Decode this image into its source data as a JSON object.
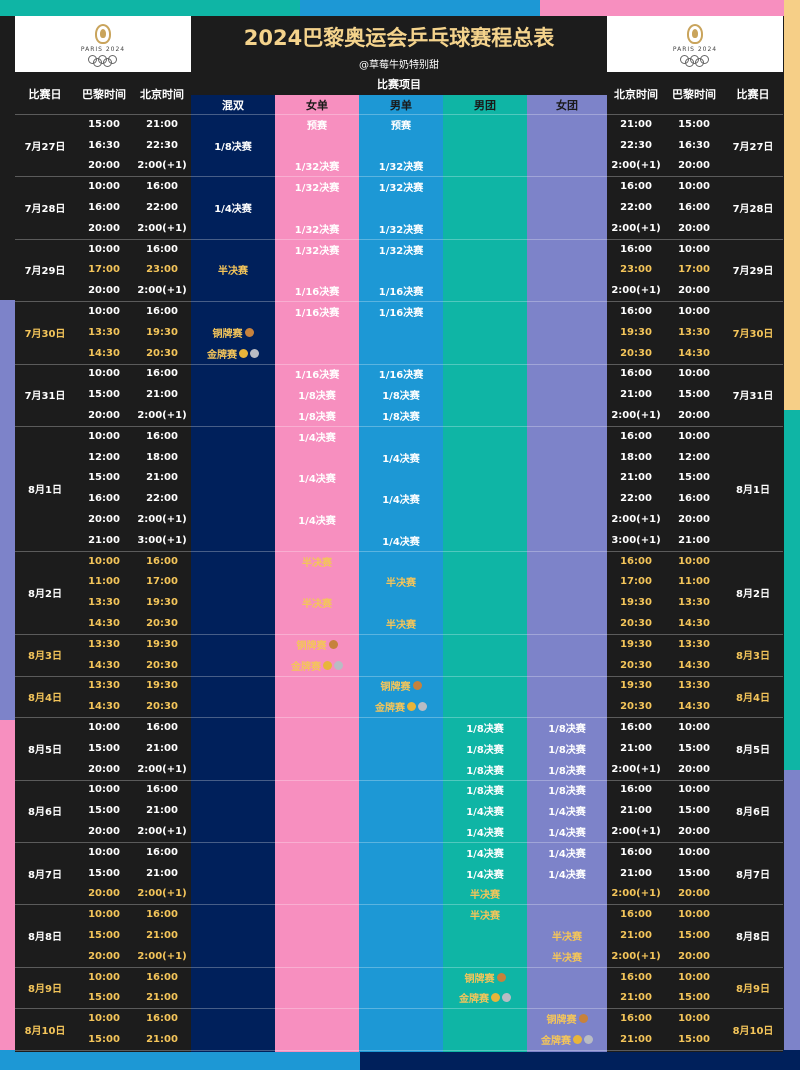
{
  "header": {
    "title": "2024巴黎奥运会乒乓球赛程总表",
    "subtitle": "@草莓牛奶特别甜",
    "logo_text": "PARIS 2024"
  },
  "columns": {
    "date": "比赛日",
    "paris": "巴黎时间",
    "beijing": "北京时间",
    "events_group": "比赛项目",
    "mixed": "混双",
    "women_single": "女单",
    "men_single": "男单",
    "men_team": "男团",
    "women_team": "女团",
    "beijing_r": "北京时间",
    "paris_r": "巴黎时间",
    "date_r": "比赛日"
  },
  "colors": {
    "mixed": "#00205b",
    "women_single": "#f78fbf",
    "men_single": "#1d98d5",
    "men_team": "#0fb5a5",
    "women_team": "#7d83c9",
    "gold_text": "#f4c55a"
  },
  "days": [
    {
      "date": "7月27日",
      "gold": false,
      "rows": [
        {
          "paris": "15:00",
          "beijing": "21:00",
          "gold": false
        },
        {
          "paris": "16:30",
          "beijing": "22:30",
          "gold": false
        },
        {
          "paris": "20:00",
          "beijing": "2:00(+1)",
          "gold": false
        }
      ]
    },
    {
      "date": "7月28日",
      "gold": false,
      "rows": [
        {
          "paris": "10:00",
          "beijing": "16:00",
          "gold": false
        },
        {
          "paris": "16:00",
          "beijing": "22:00",
          "gold": false
        },
        {
          "paris": "20:00",
          "beijing": "2:00(+1)",
          "gold": false
        }
      ]
    },
    {
      "date": "7月29日",
      "gold": false,
      "rows": [
        {
          "paris": "10:00",
          "beijing": "16:00",
          "gold": false
        },
        {
          "paris": "17:00",
          "beijing": "23:00",
          "gold": true
        },
        {
          "paris": "20:00",
          "beijing": "2:00(+1)",
          "gold": false
        }
      ]
    },
    {
      "date": "7月30日",
      "gold": true,
      "rows": [
        {
          "paris": "10:00",
          "beijing": "16:00",
          "gold": false
        },
        {
          "paris": "13:30",
          "beijing": "19:30",
          "gold": true
        },
        {
          "paris": "14:30",
          "beijing": "20:30",
          "gold": true
        }
      ]
    },
    {
      "date": "7月31日",
      "gold": false,
      "rows": [
        {
          "paris": "10:00",
          "beijing": "16:00",
          "gold": false
        },
        {
          "paris": "15:00",
          "beijing": "21:00",
          "gold": false
        },
        {
          "paris": "20:00",
          "beijing": "2:00(+1)",
          "gold": false
        }
      ]
    },
    {
      "date": "8月1日",
      "gold": false,
      "rows": [
        {
          "paris": "10:00",
          "beijing": "16:00",
          "gold": false
        },
        {
          "paris": "12:00",
          "beijing": "18:00",
          "gold": false
        },
        {
          "paris": "15:00",
          "beijing": "21:00",
          "gold": false
        },
        {
          "paris": "16:00",
          "beijing": "22:00",
          "gold": false
        },
        {
          "paris": "20:00",
          "beijing": "2:00(+1)",
          "gold": false
        },
        {
          "paris": "21:00",
          "beijing": "3:00(+1)",
          "gold": false
        }
      ]
    },
    {
      "date": "8月2日",
      "gold": false,
      "rows": [
        {
          "paris": "10:00",
          "beijing": "16:00",
          "gold": true
        },
        {
          "paris": "11:00",
          "beijing": "17:00",
          "gold": true
        },
        {
          "paris": "13:30",
          "beijing": "19:30",
          "gold": true
        },
        {
          "paris": "14:30",
          "beijing": "20:30",
          "gold": true
        }
      ]
    },
    {
      "date": "8月3日",
      "gold": true,
      "rows": [
        {
          "paris": "13:30",
          "beijing": "19:30",
          "gold": true
        },
        {
          "paris": "14:30",
          "beijing": "20:30",
          "gold": true
        }
      ]
    },
    {
      "date": "8月4日",
      "gold": true,
      "rows": [
        {
          "paris": "13:30",
          "beijing": "19:30",
          "gold": true
        },
        {
          "paris": "14:30",
          "beijing": "20:30",
          "gold": true
        }
      ]
    },
    {
      "date": "8月5日",
      "gold": false,
      "rows": [
        {
          "paris": "10:00",
          "beijing": "16:00",
          "gold": false
        },
        {
          "paris": "15:00",
          "beijing": "21:00",
          "gold": false
        },
        {
          "paris": "20:00",
          "beijing": "2:00(+1)",
          "gold": false
        }
      ]
    },
    {
      "date": "8月6日",
      "gold": false,
      "rows": [
        {
          "paris": "10:00",
          "beijing": "16:00",
          "gold": false
        },
        {
          "paris": "15:00",
          "beijing": "21:00",
          "gold": false
        },
        {
          "paris": "20:00",
          "beijing": "2:00(+1)",
          "gold": false
        }
      ]
    },
    {
      "date": "8月7日",
      "gold": false,
      "rows": [
        {
          "paris": "10:00",
          "beijing": "16:00",
          "gold": false
        },
        {
          "paris": "15:00",
          "beijing": "21:00",
          "gold": false
        },
        {
          "paris": "20:00",
          "beijing": "2:00(+1)",
          "gold": true
        }
      ]
    },
    {
      "date": "8月8日",
      "gold": false,
      "rows": [
        {
          "paris": "10:00",
          "beijing": "16:00",
          "gold": true
        },
        {
          "paris": "15:00",
          "beijing": "21:00",
          "gold": true
        },
        {
          "paris": "20:00",
          "beijing": "2:00(+1)",
          "gold": true
        }
      ]
    },
    {
      "date": "8月9日",
      "gold": true,
      "rows": [
        {
          "paris": "10:00",
          "beijing": "16:00",
          "gold": true
        },
        {
          "paris": "15:00",
          "beijing": "21:00",
          "gold": true
        }
      ]
    },
    {
      "date": "8月10日",
      "gold": true,
      "rows": [
        {
          "paris": "10:00",
          "beijing": "16:00",
          "gold": true
        },
        {
          "paris": "15:00",
          "beijing": "21:00",
          "gold": true
        }
      ]
    }
  ],
  "events": [
    {
      "col": "women_single",
      "row": 0,
      "label": "预赛",
      "gold": false
    },
    {
      "col": "men_single",
      "row": 0,
      "label": "预赛",
      "gold": false
    },
    {
      "col": "mixed",
      "row": 1,
      "label": "1/8决赛",
      "gold": false
    },
    {
      "col": "women_single",
      "row": 2,
      "label": "1/32决赛",
      "gold": false
    },
    {
      "col": "men_single",
      "row": 2,
      "label": "1/32决赛",
      "gold": false
    },
    {
      "col": "women_single",
      "row": 3,
      "label": "1/32决赛",
      "gold": false
    },
    {
      "col": "men_single",
      "row": 3,
      "label": "1/32决赛",
      "gold": false
    },
    {
      "col": "mixed",
      "row": 4,
      "label": "1/4决赛",
      "gold": false
    },
    {
      "col": "women_single",
      "row": 5,
      "label": "1/32决赛",
      "gold": false
    },
    {
      "col": "men_single",
      "row": 5,
      "label": "1/32决赛",
      "gold": false
    },
    {
      "col": "women_single",
      "row": 6,
      "label": "1/32决赛",
      "gold": false
    },
    {
      "col": "men_single",
      "row": 6,
      "label": "1/32决赛",
      "gold": false
    },
    {
      "col": "mixed",
      "row": 7,
      "label": "半决赛",
      "gold": true
    },
    {
      "col": "women_single",
      "row": 8,
      "label": "1/16决赛",
      "gold": false
    },
    {
      "col": "men_single",
      "row": 8,
      "label": "1/16决赛",
      "gold": false
    },
    {
      "col": "women_single",
      "row": 9,
      "label": "1/16决赛",
      "gold": false
    },
    {
      "col": "men_single",
      "row": 9,
      "label": "1/16决赛",
      "gold": false
    },
    {
      "col": "mixed",
      "row": 10,
      "label": "铜牌赛",
      "gold": true,
      "medals": [
        "bronze"
      ]
    },
    {
      "col": "mixed",
      "row": 11,
      "label": "金牌赛",
      "gold": true,
      "medals": [
        "gold",
        "silver"
      ]
    },
    {
      "col": "women_single",
      "row": 12,
      "label": "1/16决赛",
      "gold": false
    },
    {
      "col": "men_single",
      "row": 12,
      "label": "1/16决赛",
      "gold": false
    },
    {
      "col": "women_single",
      "row": 13,
      "label": "1/8决赛",
      "gold": false
    },
    {
      "col": "men_single",
      "row": 13,
      "label": "1/8决赛",
      "gold": false
    },
    {
      "col": "women_single",
      "row": 14,
      "label": "1/8决赛",
      "gold": false
    },
    {
      "col": "men_single",
      "row": 14,
      "label": "1/8决赛",
      "gold": false
    },
    {
      "col": "women_single",
      "row": 15,
      "label": "1/4决赛",
      "gold": false
    },
    {
      "col": "men_single",
      "row": 16,
      "label": "1/4决赛",
      "gold": false
    },
    {
      "col": "women_single",
      "row": 17,
      "label": "1/4决赛",
      "gold": false
    },
    {
      "col": "men_single",
      "row": 18,
      "label": "1/4决赛",
      "gold": false
    },
    {
      "col": "women_single",
      "row": 19,
      "label": "1/4决赛",
      "gold": false
    },
    {
      "col": "men_single",
      "row": 20,
      "label": "1/4决赛",
      "gold": false
    },
    {
      "col": "women_single",
      "row": 21,
      "label": "半决赛",
      "gold": true
    },
    {
      "col": "men_single",
      "row": 22,
      "label": "半决赛",
      "gold": true
    },
    {
      "col": "women_single",
      "row": 23,
      "label": "半决赛",
      "gold": true
    },
    {
      "col": "men_single",
      "row": 24,
      "label": "半决赛",
      "gold": true
    },
    {
      "col": "women_single",
      "row": 25,
      "label": "铜牌赛",
      "gold": true,
      "medals": [
        "bronze"
      ]
    },
    {
      "col": "women_single",
      "row": 26,
      "label": "金牌赛",
      "gold": true,
      "medals": [
        "gold",
        "silver"
      ]
    },
    {
      "col": "men_single",
      "row": 27,
      "label": "铜牌赛",
      "gold": true,
      "medals": [
        "bronze"
      ]
    },
    {
      "col": "men_single",
      "row": 28,
      "label": "金牌赛",
      "gold": true,
      "medals": [
        "gold",
        "silver"
      ]
    },
    {
      "col": "men_team",
      "row": 29,
      "label": "1/8决赛",
      "gold": false
    },
    {
      "col": "women_team",
      "row": 29,
      "label": "1/8决赛",
      "gold": false
    },
    {
      "col": "men_team",
      "row": 30,
      "label": "1/8决赛",
      "gold": false
    },
    {
      "col": "women_team",
      "row": 30,
      "label": "1/8决赛",
      "gold": false
    },
    {
      "col": "men_team",
      "row": 31,
      "label": "1/8决赛",
      "gold": false
    },
    {
      "col": "women_team",
      "row": 31,
      "label": "1/8决赛",
      "gold": false
    },
    {
      "col": "men_team",
      "row": 32,
      "label": "1/8决赛",
      "gold": false
    },
    {
      "col": "women_team",
      "row": 32,
      "label": "1/8决赛",
      "gold": false
    },
    {
      "col": "men_team",
      "row": 33,
      "label": "1/4决赛",
      "gold": false
    },
    {
      "col": "women_team",
      "row": 33,
      "label": "1/4决赛",
      "gold": false
    },
    {
      "col": "men_team",
      "row": 34,
      "label": "1/4决赛",
      "gold": false
    },
    {
      "col": "women_team",
      "row": 34,
      "label": "1/4决赛",
      "gold": false
    },
    {
      "col": "men_team",
      "row": 35,
      "label": "1/4决赛",
      "gold": false
    },
    {
      "col": "women_team",
      "row": 35,
      "label": "1/4决赛",
      "gold": false
    },
    {
      "col": "men_team",
      "row": 36,
      "label": "1/4决赛",
      "gold": false
    },
    {
      "col": "women_team",
      "row": 36,
      "label": "1/4决赛",
      "gold": false
    },
    {
      "col": "men_team",
      "row": 37,
      "label": "半决赛",
      "gold": true
    },
    {
      "col": "men_team",
      "row": 38,
      "label": "半决赛",
      "gold": true
    },
    {
      "col": "women_team",
      "row": 39,
      "label": "半决赛",
      "gold": true
    },
    {
      "col": "women_team",
      "row": 40,
      "label": "半决赛",
      "gold": true
    },
    {
      "col": "men_team",
      "row": 41,
      "label": "铜牌赛",
      "gold": true,
      "medals": [
        "bronze"
      ]
    },
    {
      "col": "men_team",
      "row": 42,
      "label": "金牌赛",
      "gold": true,
      "medals": [
        "gold",
        "silver"
      ]
    },
    {
      "col": "women_team",
      "row": 43,
      "label": "铜牌赛",
      "gold": true,
      "medals": [
        "bronze"
      ]
    },
    {
      "col": "women_team",
      "row": 44,
      "label": "金牌赛",
      "gold": true,
      "medals": [
        "gold",
        "silver"
      ]
    }
  ]
}
